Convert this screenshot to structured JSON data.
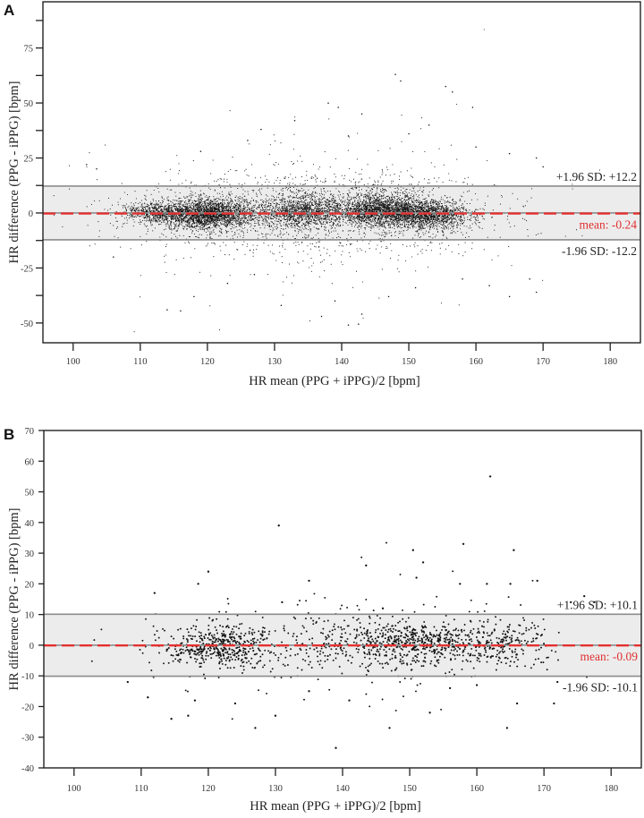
{
  "figure": {
    "panels": [
      {
        "id": "A",
        "letter": "A",
        "xlabel": "HR mean (PPG + iPPG)/2 [bpm]",
        "ylabel": "HR difference (PPG - iPPG) [bpm]",
        "x_ticks": [
          "100",
          "110",
          "120",
          "130",
          "140",
          "150",
          "160",
          "170",
          "180"
        ],
        "y_ticks": [
          "75",
          "50",
          "25",
          "0",
          "-25",
          "-50"
        ],
        "upper_loa_label": "+1.96 SD: +12.2",
        "mean_label": "mean: -0.24",
        "lower_loa_label": "-1.96 SD: -12.2"
      },
      {
        "id": "B",
        "letter": "B",
        "xlabel": "HR mean (PPG + iPPG)/2 [bpm]",
        "ylabel": "HR difference (PPG - iPPG) [bpm]",
        "x_ticks": [
          "100",
          "110",
          "120",
          "130",
          "140",
          "150",
          "160",
          "170",
          "180"
        ],
        "y_ticks": [
          "70",
          "60",
          "50",
          "40",
          "30",
          "20",
          "10",
          "0",
          "-10",
          "-20",
          "-30",
          "-40"
        ],
        "upper_loa_label": "+1.96 SD: +10.1",
        "mean_label": "mean: -0.09",
        "lower_loa_label": "-1.96 SD: -10.1"
      }
    ],
    "colors": {
      "mean_line": "#e53030",
      "loa_line": "#8c8c8c",
      "band_fill": "#ececec",
      "points": "#111111",
      "frame": "#222222"
    }
  },
  "chart_data": [
    {
      "type": "scatter",
      "title": "A",
      "subtype": "Bland-Altman",
      "xlabel": "HR mean (PPG + iPPG)/2 [bpm]",
      "ylabel": "HR difference (PPG - iPPG) [bpm]",
      "xlim": [
        95.5,
        184.5
      ],
      "ylim": [
        -59,
        96
      ],
      "x_ticks": [
        100,
        110,
        120,
        130,
        140,
        150,
        160,
        170,
        180
      ],
      "y_ticks": [
        -50,
        -25,
        0,
        25,
        50,
        75
      ],
      "mean": -0.24,
      "upper_loa": 12.2,
      "lower_loa": -12.2,
      "grid": false,
      "clusters": [
        {
          "x": 120,
          "y": -0.5,
          "sx": 3.8,
          "sy": 3.2,
          "n": 2600
        },
        {
          "x": 134,
          "y": 0.5,
          "sx": 3.5,
          "sy": 3.6,
          "n": 1300
        },
        {
          "x": 146,
          "y": 1.0,
          "sx": 3.6,
          "sy": 3.4,
          "n": 2200
        },
        {
          "x": 153.5,
          "y": -1.0,
          "sx": 3.0,
          "sy": 3.2,
          "n": 1300
        },
        {
          "x": 112,
          "y": 0.5,
          "sx": 2.5,
          "sy": 2.0,
          "n": 500
        },
        {
          "x": 136,
          "y": 0.0,
          "sx": 14,
          "sy": 10,
          "n": 1400
        }
      ],
      "outliers": [
        [
          102,
          22
        ],
        [
          103.5,
          20
        ],
        [
          138,
          50
        ],
        [
          139.5,
          48
        ],
        [
          148,
          63
        ],
        [
          148.8,
          60
        ],
        [
          155.5,
          57.5
        ],
        [
          156.5,
          55
        ],
        [
          159.5,
          48
        ],
        [
          128,
          38
        ],
        [
          133,
          42
        ],
        [
          143,
          45
        ],
        [
          126,
          33
        ],
        [
          141,
          35
        ],
        [
          150,
          36
        ],
        [
          153,
          40
        ],
        [
          119,
          28
        ],
        [
          160,
          30
        ],
        [
          165,
          27
        ],
        [
          169,
          25
        ],
        [
          170,
          21
        ],
        [
          114,
          -44
        ],
        [
          116,
          -44.5
        ],
        [
          118,
          -38
        ],
        [
          137,
          -47
        ],
        [
          141,
          -51
        ],
        [
          142.5,
          -50.5
        ],
        [
          143,
          -46
        ],
        [
          131,
          -42
        ],
        [
          139,
          -40
        ],
        [
          147,
          -38
        ],
        [
          158,
          -30
        ],
        [
          162,
          -33
        ],
        [
          165,
          -38
        ],
        [
          168,
          -30
        ],
        [
          169,
          -36
        ],
        [
          123,
          -32
        ],
        [
          127,
          -28
        ],
        [
          151,
          -34
        ],
        [
          106,
          -20
        ]
      ]
    },
    {
      "type": "scatter",
      "title": "B",
      "subtype": "Bland-Altman",
      "xlabel": "HR mean (PPG + iPPG)/2 [bpm]",
      "ylabel": "HR difference (PPG - iPPG) [bpm]",
      "xlim": [
        95.5,
        184.5
      ],
      "ylim": [
        -40,
        70
      ],
      "x_ticks": [
        100,
        110,
        120,
        130,
        140,
        150,
        160,
        170,
        180
      ],
      "y_ticks": [
        -40,
        -30,
        -20,
        -10,
        0,
        10,
        20,
        30,
        40,
        50,
        60,
        70
      ],
      "mean": -0.09,
      "upper_loa": 10.1,
      "lower_loa": -10.1,
      "grid": false,
      "clusters": [
        {
          "x": 122,
          "y": -0.5,
          "sx": 4.0,
          "sy": 3.0,
          "n": 420
        },
        {
          "x": 151,
          "y": 0.5,
          "sx": 5.5,
          "sy": 3.3,
          "n": 520
        },
        {
          "x": 164,
          "y": 0.0,
          "sx": 3.0,
          "sy": 3.5,
          "n": 200
        },
        {
          "x": 138,
          "y": 0.0,
          "sx": 12,
          "sy": 5.5,
          "n": 380
        }
      ],
      "outliers": [
        [
          162,
          55
        ],
        [
          130.5,
          39
        ],
        [
          158,
          33
        ],
        [
          150.5,
          31
        ],
        [
          165.5,
          31
        ],
        [
          152,
          27
        ],
        [
          143.5,
          26
        ],
        [
          120,
          24
        ],
        [
          161.5,
          20
        ],
        [
          165,
          20
        ],
        [
          151,
          22
        ],
        [
          157.5,
          20
        ],
        [
          112,
          17
        ],
        [
          118.5,
          20
        ],
        [
          131,
          14
        ],
        [
          135,
          21
        ],
        [
          146,
          12
        ],
        [
          169,
          21
        ],
        [
          174,
          14
        ],
        [
          176,
          16
        ],
        [
          177.5,
          14
        ],
        [
          139,
          -33.5
        ],
        [
          127,
          -27
        ],
        [
          147,
          -27
        ],
        [
          164.5,
          -27
        ],
        [
          130,
          -23
        ],
        [
          118,
          -18
        ],
        [
          114.5,
          -24
        ],
        [
          117,
          -23
        ],
        [
          153,
          -22
        ],
        [
          166,
          -19
        ],
        [
          171.5,
          -19
        ],
        [
          111,
          -17
        ],
        [
          124,
          -19
        ],
        [
          141,
          -18
        ],
        [
          160,
          -13
        ],
        [
          108,
          -12
        ],
        [
          172,
          -12
        ],
        [
          135,
          -15
        ],
        [
          156,
          -14
        ]
      ]
    }
  ]
}
